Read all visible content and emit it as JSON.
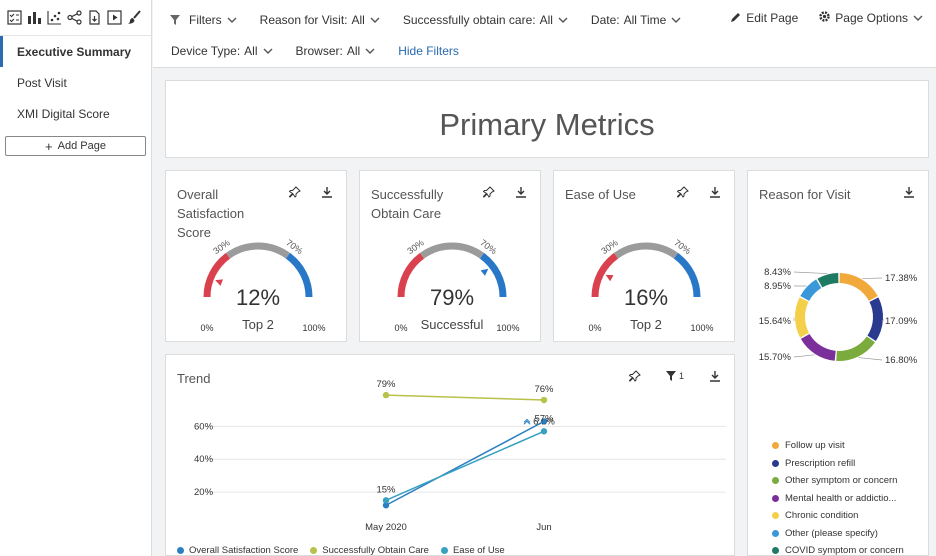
{
  "sidebar": {
    "tools": [
      "checklist-icon",
      "bar-chart-icon",
      "scatter-icon",
      "share-icon",
      "export-file-icon",
      "play-icon",
      "paint-brush-icon"
    ],
    "items": [
      {
        "label": "Executive Summary",
        "active": true
      },
      {
        "label": "Post Visit",
        "active": false
      },
      {
        "label": "XMI Digital Score",
        "active": false
      }
    ],
    "add_page": "Add Page"
  },
  "filters": {
    "filters_label": "Filters",
    "row1": [
      {
        "label": "Reason for Visit:",
        "value": "All"
      },
      {
        "label": "Successfully obtain care:",
        "value": "All"
      },
      {
        "label": "Date:",
        "value": "All Time"
      }
    ],
    "row2": [
      {
        "label": "Device Type:",
        "value": "All"
      },
      {
        "label": "Browser:",
        "value": "All"
      }
    ],
    "hide_filters": "Hide Filters"
  },
  "page_actions": {
    "edit": "Edit Page",
    "options": "Page Options"
  },
  "primary": {
    "title": "Primary Metrics"
  },
  "gauges": [
    {
      "title_lines": [
        "Overall",
        "Satisfaction",
        "Score"
      ],
      "value": "12%",
      "label": "Top 2",
      "percent": 12,
      "min": "0%",
      "max": "100%",
      "t1": "30%",
      "t2": "70%"
    },
    {
      "title_lines": [
        "Successfully",
        "Obtain Care"
      ],
      "value": "79%",
      "label": "Successful",
      "percent": 79,
      "min": "0%",
      "max": "100%",
      "t1": "30%",
      "t2": "70%"
    },
    {
      "title_lines": [
        "Ease of Use"
      ],
      "value": "16%",
      "label": "Top 2",
      "percent": 16,
      "min": "0%",
      "max": "100%",
      "t1": "30%",
      "t2": "70%"
    }
  ],
  "colors": {
    "low": "#d9414e",
    "mid": "#9b9b9b",
    "high": "#2878c7"
  },
  "reason": {
    "title": "Reason for Visit",
    "slices": [
      {
        "name": "Follow up visit",
        "value": 17.38,
        "label": "17.38%",
        "color": "#f2a93b"
      },
      {
        "name": "Prescription refill",
        "value": 17.09,
        "label": "17.09%",
        "color": "#2a3a8f"
      },
      {
        "name": "Other symptom or concern",
        "value": 16.8,
        "label": "16.80%",
        "color": "#7aab3c"
      },
      {
        "name": "Mental health or addictio...",
        "value": 15.7,
        "label": "15.70%",
        "color": "#7b2f9b"
      },
      {
        "name": "Chronic condition",
        "value": 15.64,
        "label": "15.64%",
        "color": "#f4d04a"
      },
      {
        "name": "Other (please specify)",
        "value": 8.95,
        "label": "8.95%",
        "color": "#3a98d8"
      },
      {
        "name": "COVID symptom or concern",
        "value": 8.43,
        "label": "8.43%",
        "color": "#1e7a63"
      }
    ]
  },
  "trend": {
    "title": "Trend",
    "filter_count": "1",
    "chart_data": {
      "type": "line",
      "categories": [
        "May 2020",
        "Jun"
      ],
      "y_ticks": [
        "20%",
        "40%",
        "60%"
      ],
      "ylim": [
        0,
        90
      ],
      "series": [
        {
          "name": "Overall Satisfaction Score",
          "color": "#2a7fc0",
          "values": [
            12,
            63
          ],
          "labels": [
            "12%",
            "63%"
          ]
        },
        {
          "name": "Successfully Obtain Care",
          "color": "#b8c24a",
          "values": [
            79,
            76
          ],
          "labels": [
            "79%",
            "76%"
          ]
        },
        {
          "name": "Ease of Use",
          "color": "#38a0c0",
          "values": [
            15,
            57
          ],
          "labels": [
            "15%",
            "57%"
          ]
        }
      ],
      "visible_labels": [
        "79%",
        "76%",
        "6...%",
        "57%",
        "15%"
      ]
    }
  }
}
